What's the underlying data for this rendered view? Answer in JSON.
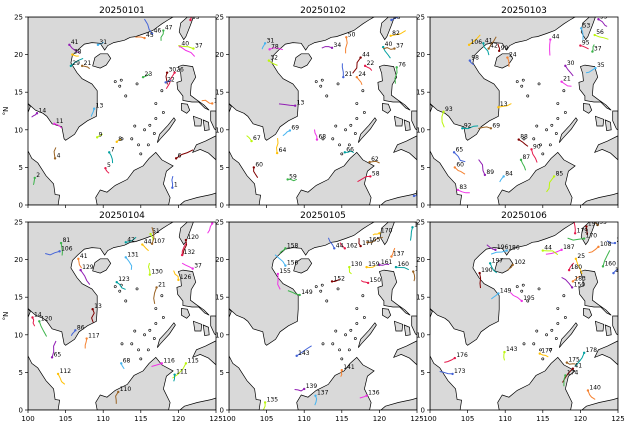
{
  "figure": {
    "xlabel": "°E",
    "ylabel": "°N",
    "xlim": [
      100,
      125
    ],
    "ylim": [
      0,
      25
    ],
    "xticks": [
      "100",
      "105",
      "110",
      "115",
      "120",
      "125"
    ],
    "yticks": [
      "0",
      "5",
      "10",
      "15",
      "20",
      "25"
    ],
    "colors": {
      "land": "#d9d9d9",
      "sea": "#ffffff",
      "coast": "#000000",
      "tracks": [
        "#e6194b",
        "#3cb44b",
        "#4363d8",
        "#f58231",
        "#911eb4",
        "#46b4f0",
        "#f032e6",
        "#bcf60c",
        "#ffc107",
        "#00a0a0",
        "#9a6324",
        "#800000"
      ]
    }
  },
  "chart_data": [
    {
      "type": "scatter",
      "title": "20250101",
      "xlim": [
        100,
        125
      ],
      "ylim": [
        0,
        25
      ],
      "labels": [
        {
          "t": "55",
          "x": 121.6,
          "y": 24.6
        },
        {
          "t": "47",
          "x": 118.0,
          "y": 23.2
        },
        {
          "t": "46",
          "x": 116.5,
          "y": 22.8
        },
        {
          "t": "45",
          "x": 115.5,
          "y": 22.2
        },
        {
          "t": "41",
          "x": 105.5,
          "y": 21.3
        },
        {
          "t": "31",
          "x": 109.3,
          "y": 21.3
        },
        {
          "t": "40",
          "x": 120.2,
          "y": 21.1
        },
        {
          "t": "37",
          "x": 122.0,
          "y": 20.8
        },
        {
          "t": "38",
          "x": 105.9,
          "y": 20.0
        },
        {
          "t": "29",
          "x": 105.7,
          "y": 18.5
        },
        {
          "t": "21",
          "x": 107.2,
          "y": 18.5
        },
        {
          "t": "30",
          "x": 118.5,
          "y": 17.6
        },
        {
          "t": "26",
          "x": 119.5,
          "y": 17.6
        },
        {
          "t": "23",
          "x": 115.3,
          "y": 17.0
        },
        {
          "t": "22",
          "x": 118.3,
          "y": 16.3
        },
        {
          "t": "19",
          "x": 124.5,
          "y": 13.5
        },
        {
          "t": "14",
          "x": 101.2,
          "y": 12.2
        },
        {
          "t": "13",
          "x": 108.8,
          "y": 12.8
        },
        {
          "t": "11",
          "x": 103.5,
          "y": 10.8
        },
        {
          "t": "9",
          "x": 109.2,
          "y": 9.0
        },
        {
          "t": "8",
          "x": 111.8,
          "y": 8.4
        },
        {
          "t": "7",
          "x": 110.8,
          "y": 7.0
        },
        {
          "t": "4",
          "x": 103.6,
          "y": 6.2
        },
        {
          "t": "6",
          "x": 119.7,
          "y": 6.2
        },
        {
          "t": "5",
          "x": 110.3,
          "y": 4.9
        },
        {
          "t": "2",
          "x": 100.9,
          "y": 3.6
        },
        {
          "t": "1",
          "x": 119.2,
          "y": 2.3
        }
      ]
    },
    {
      "type": "scatter",
      "title": "20250102",
      "xlim": [
        100,
        125
      ],
      "ylim": [
        0,
        25
      ],
      "labels": [
        {
          "t": "55",
          "x": 121.6,
          "y": 24.6
        },
        {
          "t": "50",
          "x": 115.6,
          "y": 22.3
        },
        {
          "t": "34",
          "x": 113.7,
          "y": 20.9
        },
        {
          "t": "31",
          "x": 104.8,
          "y": 21.5
        },
        {
          "t": "78",
          "x": 105.4,
          "y": 20.7
        },
        {
          "t": "32",
          "x": 105.3,
          "y": 19.2
        },
        {
          "t": "82",
          "x": 121.5,
          "y": 22.5
        },
        {
          "t": "40",
          "x": 120.5,
          "y": 21.0
        },
        {
          "t": "37",
          "x": 122.0,
          "y": 20.8
        },
        {
          "t": "44",
          "x": 117.5,
          "y": 19.6
        },
        {
          "t": "22",
          "x": 118.1,
          "y": 18.5
        },
        {
          "t": "76",
          "x": 122.3,
          "y": 18.3
        },
        {
          "t": "21",
          "x": 115.2,
          "y": 17.0
        },
        {
          "t": "24",
          "x": 117.0,
          "y": 17.0
        },
        {
          "t": "13",
          "x": 108.8,
          "y": 13.2
        },
        {
          "t": "69",
          "x": 108.1,
          "y": 9.9
        },
        {
          "t": "68",
          "x": 111.7,
          "y": 8.7
        },
        {
          "t": "67",
          "x": 103.0,
          "y": 8.5
        },
        {
          "t": "64",
          "x": 106.4,
          "y": 6.9
        },
        {
          "t": "66",
          "x": 115.4,
          "y": 7.0
        },
        {
          "t": "62",
          "x": 118.7,
          "y": 5.7
        },
        {
          "t": "60",
          "x": 103.3,
          "y": 5.0
        },
        {
          "t": "58",
          "x": 118.8,
          "y": 3.8
        },
        {
          "t": "59",
          "x": 107.8,
          "y": 3.4
        },
        {
          "t": "57",
          "x": 124.6,
          "y": 1.2
        }
      ]
    },
    {
      "type": "scatter",
      "title": "20250103",
      "xlim": [
        100,
        125
      ],
      "ylim": [
        0,
        25
      ],
      "labels": [
        {
          "t": "55",
          "x": 122.4,
          "y": 24.7
        },
        {
          "t": "53",
          "x": 120.1,
          "y": 23.5
        },
        {
          "t": "44",
          "x": 116.0,
          "y": 22.0
        },
        {
          "t": "56",
          "x": 121.9,
          "y": 22.6
        },
        {
          "t": "106",
          "x": 105.2,
          "y": 21.3
        },
        {
          "t": "41",
          "x": 107.1,
          "y": 21.5
        },
        {
          "t": "42",
          "x": 107.8,
          "y": 20.8
        },
        {
          "t": "99",
          "x": 109.2,
          "y": 20.5
        },
        {
          "t": "95",
          "x": 120.0,
          "y": 21.2
        },
        {
          "t": "37",
          "x": 121.6,
          "y": 20.4
        },
        {
          "t": "98",
          "x": 105.3,
          "y": 19.2
        },
        {
          "t": "24",
          "x": 110.3,
          "y": 19.6
        },
        {
          "t": "30",
          "x": 118.0,
          "y": 18.5
        },
        {
          "t": "35",
          "x": 122.0,
          "y": 18.2
        },
        {
          "t": "21",
          "x": 117.5,
          "y": 16.4
        },
        {
          "t": "93",
          "x": 101.8,
          "y": 12.4
        },
        {
          "t": "13",
          "x": 109.1,
          "y": 13.0
        },
        {
          "t": "92",
          "x": 104.3,
          "y": 10.2
        },
        {
          "t": "69",
          "x": 108.1,
          "y": 10.2
        },
        {
          "t": "88",
          "x": 111.8,
          "y": 8.7
        },
        {
          "t": "90",
          "x": 113.5,
          "y": 7.4
        },
        {
          "t": "87",
          "x": 112.1,
          "y": 6.0
        },
        {
          "t": "65",
          "x": 103.2,
          "y": 7.0
        },
        {
          "t": "60",
          "x": 103.3,
          "y": 5.0
        },
        {
          "t": "89",
          "x": 107.3,
          "y": 4.0
        },
        {
          "t": "84",
          "x": 109.8,
          "y": 3.8
        },
        {
          "t": "83",
          "x": 103.7,
          "y": 2.0
        },
        {
          "t": "85",
          "x": 116.5,
          "y": 3.8
        }
      ]
    },
    {
      "type": "scatter",
      "title": "20250104",
      "xlim": [
        100,
        125
      ],
      "ylim": [
        0,
        25
      ],
      "labels": [
        {
          "t": "134",
          "x": 124.5,
          "y": 24.8
        },
        {
          "t": "51",
          "x": 116.3,
          "y": 23.4
        },
        {
          "t": "44",
          "x": 115.2,
          "y": 22.0
        },
        {
          "t": "42",
          "x": 113.0,
          "y": 22.3
        },
        {
          "t": "107",
          "x": 116.5,
          "y": 22.1
        },
        {
          "t": "120",
          "x": 121.0,
          "y": 22.6
        },
        {
          "t": "132",
          "x": 120.5,
          "y": 20.6
        },
        {
          "t": "81",
          "x": 104.4,
          "y": 22.2
        },
        {
          "t": "106",
          "x": 104.2,
          "y": 21.1
        },
        {
          "t": "41",
          "x": 106.7,
          "y": 20.1
        },
        {
          "t": "129",
          "x": 107.0,
          "y": 18.6
        },
        {
          "t": "131",
          "x": 113.0,
          "y": 20.3
        },
        {
          "t": "37",
          "x": 121.9,
          "y": 18.8
        },
        {
          "t": "130",
          "x": 116.2,
          "y": 18.0
        },
        {
          "t": "126",
          "x": 120.0,
          "y": 17.3
        },
        {
          "t": "123",
          "x": 111.8,
          "y": 17.0
        },
        {
          "t": "21",
          "x": 117.1,
          "y": 16.3
        },
        {
          "t": "13",
          "x": 108.6,
          "y": 13.4
        },
        {
          "t": "14",
          "x": 100.6,
          "y": 12.3
        },
        {
          "t": "120",
          "x": 101.5,
          "y": 11.8
        },
        {
          "t": "86",
          "x": 106.3,
          "y": 10.6
        },
        {
          "t": "117",
          "x": 107.8,
          "y": 9.5
        },
        {
          "t": "65",
          "x": 103.2,
          "y": 7.0
        },
        {
          "t": "68",
          "x": 112.4,
          "y": 6.2
        },
        {
          "t": "116",
          "x": 117.8,
          "y": 6.2
        },
        {
          "t": "115",
          "x": 121.0,
          "y": 6.2
        },
        {
          "t": "112",
          "x": 104.0,
          "y": 4.8
        },
        {
          "t": "111",
          "x": 119.5,
          "y": 4.7
        },
        {
          "t": "110",
          "x": 112.0,
          "y": 2.4
        }
      ]
    },
    {
      "type": "scatter",
      "title": "20250105",
      "xlim": [
        100,
        125
      ],
      "ylim": [
        0,
        25
      ],
      "labels": [
        {
          "t": "170",
          "x": 120.0,
          "y": 23.5
        },
        {
          "t": "134",
          "x": 124.4,
          "y": 24.3
        },
        {
          "t": "165",
          "x": 118.4,
          "y": 22.3
        },
        {
          "t": "177",
          "x": 117.5,
          "y": 21.8
        },
        {
          "t": "162",
          "x": 115.4,
          "y": 21.5
        },
        {
          "t": "158",
          "x": 107.5,
          "y": 21.5
        },
        {
          "t": "44",
          "x": 114.0,
          "y": 21.5
        },
        {
          "t": "137",
          "x": 121.6,
          "y": 20.4
        },
        {
          "t": "161",
          "x": 120.0,
          "y": 19.3
        },
        {
          "t": "156",
          "x": 107.5,
          "y": 19.2
        },
        {
          "t": "155",
          "x": 106.5,
          "y": 18.1
        },
        {
          "t": "130",
          "x": 116.0,
          "y": 19.0
        },
        {
          "t": "159",
          "x": 118.3,
          "y": 19.0
        },
        {
          "t": "160",
          "x": 122.2,
          "y": 19.0
        },
        {
          "t": "157",
          "x": 124.5,
          "y": 18.4
        },
        {
          "t": "152",
          "x": 113.7,
          "y": 17.1
        },
        {
          "t": "150",
          "x": 118.5,
          "y": 16.9
        },
        {
          "t": "149",
          "x": 109.4,
          "y": 15.3
        },
        {
          "t": "143",
          "x": 109.0,
          "y": 7.2
        },
        {
          "t": "141",
          "x": 115.0,
          "y": 5.3
        },
        {
          "t": "139",
          "x": 110.0,
          "y": 2.8
        },
        {
          "t": "137",
          "x": 111.5,
          "y": 1.9
        },
        {
          "t": "136",
          "x": 118.3,
          "y": 1.9
        },
        {
          "t": "135",
          "x": 104.8,
          "y": 1.0
        }
      ]
    },
    {
      "type": "scatter",
      "title": "20250106",
      "xlim": [
        100,
        125
      ],
      "ylim": [
        0,
        25
      ],
      "labels": [
        {
          "t": "55",
          "x": 122.3,
          "y": 24.6
        },
        {
          "t": "199",
          "x": 120.8,
          "y": 24.4
        },
        {
          "t": "179",
          "x": 119.3,
          "y": 23.5
        },
        {
          "t": "170",
          "x": 120.5,
          "y": 22.8
        },
        {
          "t": "201",
          "x": 124.6,
          "y": 22.2
        },
        {
          "t": "108",
          "x": 122.4,
          "y": 21.7
        },
        {
          "t": "196",
          "x": 108.7,
          "y": 21.3
        },
        {
          "t": "186",
          "x": 110.2,
          "y": 21.2
        },
        {
          "t": "187",
          "x": 117.5,
          "y": 21.3
        },
        {
          "t": "44",
          "x": 115.0,
          "y": 21.2
        },
        {
          "t": "25",
          "x": 119.4,
          "y": 20.1
        },
        {
          "t": "197",
          "x": 108.0,
          "y": 19.5
        },
        {
          "t": "102",
          "x": 111.0,
          "y": 19.3
        },
        {
          "t": "190",
          "x": 106.6,
          "y": 18.2
        },
        {
          "t": "180",
          "x": 118.5,
          "y": 18.6
        },
        {
          "t": "160",
          "x": 123.0,
          "y": 19.1
        },
        {
          "t": "157",
          "x": 124.4,
          "y": 18.2
        },
        {
          "t": "183",
          "x": 119.0,
          "y": 17.1
        },
        {
          "t": "150",
          "x": 118.9,
          "y": 16.3
        },
        {
          "t": "149",
          "x": 109.1,
          "y": 15.5
        },
        {
          "t": "195",
          "x": 112.2,
          "y": 14.5
        },
        {
          "t": "143",
          "x": 109.9,
          "y": 7.7
        },
        {
          "t": "177",
          "x": 114.6,
          "y": 7.5
        },
        {
          "t": "178",
          "x": 120.5,
          "y": 7.6
        },
        {
          "t": "175",
          "x": 118.2,
          "y": 6.3
        },
        {
          "t": "41",
          "x": 119.0,
          "y": 5.5
        },
        {
          "t": "176",
          "x": 103.3,
          "y": 6.9
        },
        {
          "t": "174",
          "x": 118.0,
          "y": 4.6
        },
        {
          "t": "173",
          "x": 103.0,
          "y": 4.8
        },
        {
          "t": "140",
          "x": 121.0,
          "y": 2.6
        }
      ]
    }
  ]
}
